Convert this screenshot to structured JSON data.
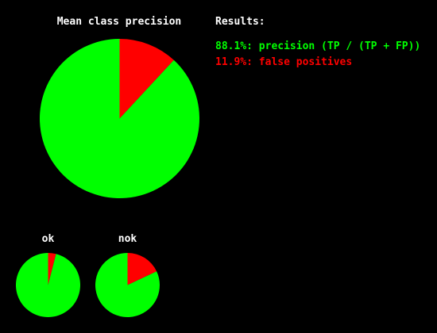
{
  "colors": {
    "background": "#000000",
    "text": "#ffffff",
    "precision": "#00ff00",
    "false_positive": "#ff0000"
  },
  "results": {
    "title": "Results:",
    "lines": [
      {
        "text": "88.1%: precision (TP / (TP + FP))",
        "color": "#00ff00"
      },
      {
        "text": "11.9%: false positives",
        "color": "#ff0000"
      }
    ]
  },
  "chart_data": [
    {
      "type": "pie",
      "title": "Mean class precision",
      "slices": [
        {
          "label": "false positives",
          "value": 11.9,
          "color": "#ff0000"
        },
        {
          "label": "precision",
          "value": 88.1,
          "color": "#00ff00"
        }
      ]
    },
    {
      "type": "pie",
      "title": "ok",
      "slices": [
        {
          "label": "false positives",
          "value": 4,
          "color": "#ff0000"
        },
        {
          "label": "precision",
          "value": 96,
          "color": "#00ff00"
        }
      ]
    },
    {
      "type": "pie",
      "title": "nok",
      "slices": [
        {
          "label": "false positives",
          "value": 18,
          "color": "#ff0000"
        },
        {
          "label": "precision",
          "value": 82,
          "color": "#00ff00"
        }
      ]
    }
  ]
}
